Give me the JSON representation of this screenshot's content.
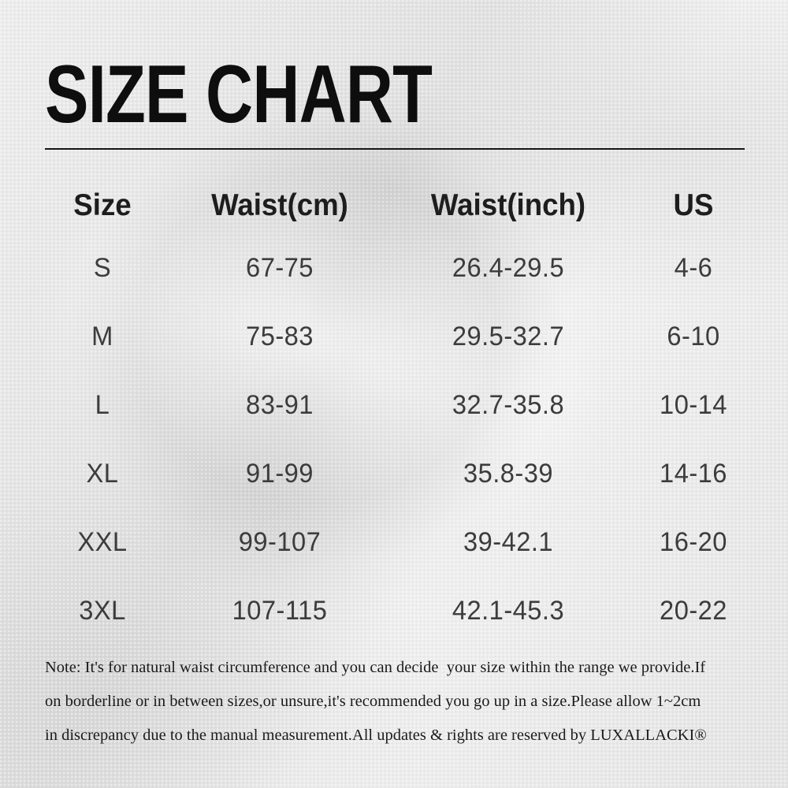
{
  "header": {
    "title": "SIZE CHART"
  },
  "table": {
    "headers": [
      "Size",
      "Waist(cm)",
      "Waist(inch)",
      "US"
    ],
    "rows": [
      [
        "S",
        "67-75",
        "26.4-29.5",
        "4-6"
      ],
      [
        "M",
        "75-83",
        "29.5-32.7",
        "6-10"
      ],
      [
        "L",
        "83-91",
        "32.7-35.8",
        "10-14"
      ],
      [
        "XL",
        "91-99",
        "35.8-39",
        "14-16"
      ],
      [
        "XXL",
        "99-107",
        "39-42.1",
        "16-20"
      ],
      [
        "3XL",
        "107-115",
        "42.1-45.3",
        "20-22"
      ]
    ]
  },
  "note": {
    "lines": [
      "Note: It's for natural waist circumference and you can decide  your size within the range we provide.If",
      "on borderline or in between sizes,or unsure,it's recommended you go up in a size.Please allow 1~2cm",
      "in discrepancy due to the manual measurement.All updates & rights are reserved by LUXALLACKI®"
    ],
    "brand": "LUXALLACKI®"
  },
  "colors": {
    "background": "#e7e7e7",
    "title_text": "#0e0e0e",
    "header_text": "#1d1d1d",
    "value_text": "#3c3c3c",
    "note_text": "#1b1b1b"
  }
}
